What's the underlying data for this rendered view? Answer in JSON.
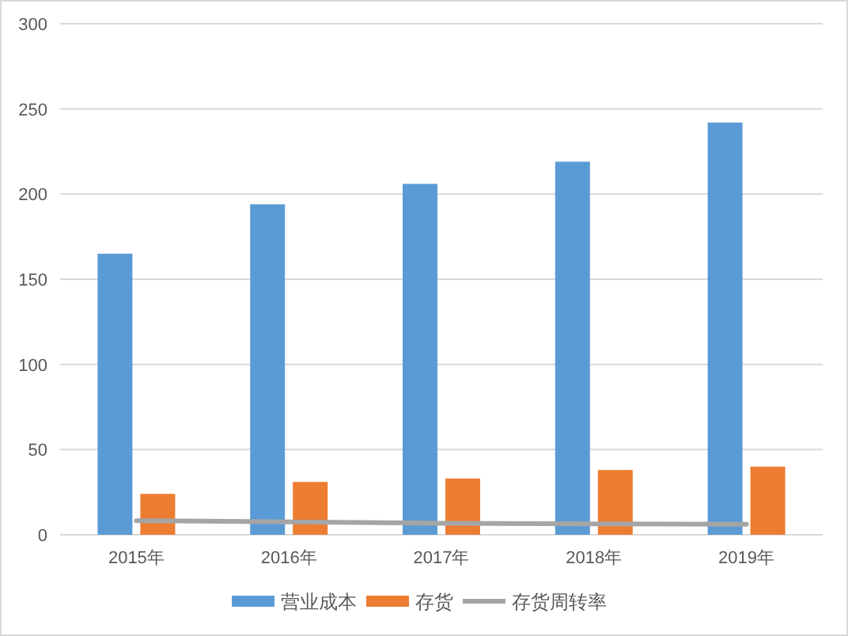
{
  "chart_data": {
    "type": "bar",
    "categories": [
      "2015年",
      "2016年",
      "2017年",
      "2018年",
      "2019年"
    ],
    "series": [
      {
        "name": "营业成本",
        "color": "#5b9bd5",
        "values": [
          165,
          194,
          206,
          219,
          242
        ]
      },
      {
        "name": "存货",
        "color": "#ed7d31",
        "values": [
          24,
          31,
          33,
          38,
          40
        ]
      },
      {
        "name": "存货周转率",
        "type": "line",
        "color": "#a5a5a5",
        "values": [
          8.3,
          7.6,
          6.7,
          6.4,
          6.1
        ]
      }
    ],
    "ylim": [
      0,
      300
    ],
    "yticks": [
      0,
      50,
      100,
      150,
      200,
      250,
      300
    ],
    "grid": "y",
    "legend": "bottom",
    "marker": "none",
    "line_style": "solid"
  }
}
